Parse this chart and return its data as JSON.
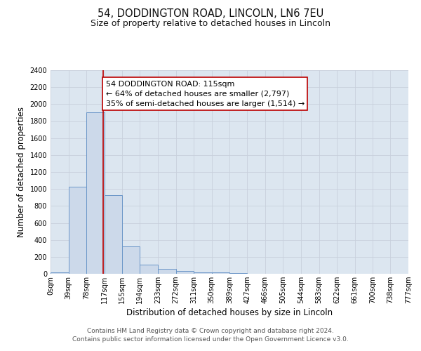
{
  "title": "54, DODDINGTON ROAD, LINCOLN, LN6 7EU",
  "subtitle": "Size of property relative to detached houses in Lincoln",
  "xlabel": "Distribution of detached houses by size in Lincoln",
  "ylabel": "Number of detached properties",
  "bin_edges": [
    0,
    39,
    78,
    117,
    155,
    194,
    233,
    272,
    311,
    350,
    389,
    427,
    466,
    505,
    544,
    583,
    622,
    661,
    700,
    738,
    777
  ],
  "bin_counts": [
    20,
    1025,
    1900,
    930,
    320,
    110,
    55,
    35,
    20,
    20,
    10,
    0,
    0,
    0,
    0,
    0,
    0,
    0,
    0,
    0
  ],
  "bar_facecolor": "#ccd9ea",
  "bar_edgecolor": "#6b96c8",
  "property_line_x": 115,
  "property_line_color": "#bb0000",
  "annotation_text": "54 DODDINGTON ROAD: 115sqm\n← 64% of detached houses are smaller (2,797)\n35% of semi-detached houses are larger (1,514) →",
  "annotation_box_edgecolor": "#bb0000",
  "annotation_box_facecolor": "#ffffff",
  "grid_color": "#c8d0dc",
  "background_color": "#dce6f0",
  "ylim": [
    0,
    2400
  ],
  "yticks": [
    0,
    200,
    400,
    600,
    800,
    1000,
    1200,
    1400,
    1600,
    1800,
    2000,
    2200,
    2400
  ],
  "tick_labels": [
    "0sqm",
    "39sqm",
    "78sqm",
    "117sqm",
    "155sqm",
    "194sqm",
    "233sqm",
    "272sqm",
    "311sqm",
    "350sqm",
    "389sqm",
    "427sqm",
    "466sqm",
    "505sqm",
    "544sqm",
    "583sqm",
    "622sqm",
    "661sqm",
    "700sqm",
    "738sqm",
    "777sqm"
  ],
  "footer_text": "Contains HM Land Registry data © Crown copyright and database right 2024.\nContains public sector information licensed under the Open Government Licence v3.0.",
  "title_fontsize": 10.5,
  "subtitle_fontsize": 9,
  "axis_label_fontsize": 8.5,
  "tick_fontsize": 7,
  "annotation_fontsize": 8,
  "footer_fontsize": 6.5
}
